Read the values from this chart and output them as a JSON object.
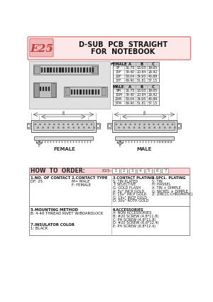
{
  "title_model": "E25",
  "title_line1": "D-SUB  PCB  STRAIGHT",
  "title_line2": "FOR  NOTEBOOK",
  "bg_color": "#ffffff",
  "header_bg": "#fce8e8",
  "header_border": "#e08080",
  "how_to_order_bg": "#f8d8d8",
  "female_label": "FEMALE",
  "male_label": "MALE",
  "how_to_order_title": "HOW  TO  ORDER:",
  "order_code": "E25-",
  "order_boxes": [
    "1",
    "2",
    "3",
    "4",
    "5",
    "6",
    "7"
  ],
  "table_headers": [
    "FEMALE",
    "A",
    "B",
    "C"
  ],
  "table_headers2": [
    "MALE",
    "A",
    "B",
    "C"
  ],
  "female_rows": [
    [
      "9F",
      "31.75",
      "13.03",
      "19.05"
    ],
    [
      "15F",
      "39.40",
      "20.84",
      "26.92"
    ],
    [
      "25F",
      "53.04",
      "34.93",
      "40.89"
    ],
    [
      "37F",
      "69.90",
      "51.81",
      "57.15"
    ]
  ],
  "male_rows": [
    [
      "9M",
      "31.75",
      "13.03",
      "19.05"
    ],
    [
      "15M",
      "39.40",
      "20.84",
      "26.92"
    ],
    [
      "25M",
      "53.04",
      "34.93",
      "40.89"
    ],
    [
      "37M",
      "69.90",
      "51.81",
      "57.15"
    ]
  ],
  "col1_items": [
    "1.NO. OF CONTACT",
    "DF: 25"
  ],
  "col2_items": [
    "2.CONTACT TYPE",
    "M= MALE",
    "F: FEMALE"
  ],
  "col3_items": [
    "3.CONTACT PLATING",
    "S: TIN PLATED",
    "T: SELECTIVE",
    "G: GOLD FLASH",
    "A: 3u\" INCP GOLD",
    "E: 15u\" INCP GOLD",
    "G: 15u\" INCP GOLD",
    "D: 30u\" ROTH GOLD"
  ],
  "col4_items": [
    "4.SPCL. PLATING",
    "S: TIN",
    "H: HASSEL",
    "A: TIN + DIMPLE",
    "G: NICKEL + DIMPLE",
    "Z: ZINC(C-CHROMATIC)"
  ],
  "col5_items": [
    "5.MOUNTING METHOD",
    "B: 4-40 THREAD RIVET W/BOARDLOCK"
  ],
  "col6_items": [
    "6.ACCESSORIES",
    "A: NON ACCESSORIES",
    "B: #20 SCREW (4.8*11.8)",
    "C: PH SCREW (4.8*11.8)",
    "D: #20 SCREW (6.8*12.4)",
    "E: PH SCREW (6.8*12.4)"
  ],
  "col7_items": [
    "7.INSULATOR COLOR",
    "1: BLACK"
  ]
}
